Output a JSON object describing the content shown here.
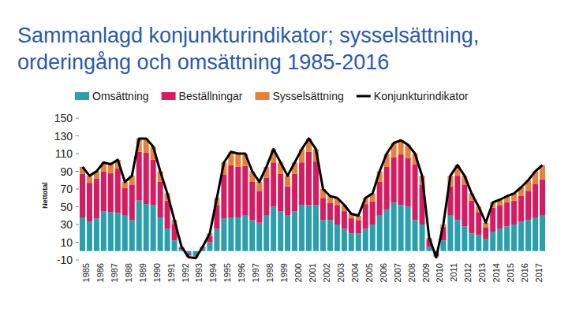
{
  "chart_data": {
    "type": "bar",
    "stacked": true,
    "grid": false,
    "title": "Sammanlagd konjunkturindikator; sysselsättning, orderingång och omsättning 1985-2016",
    "y_label": "Nettotal",
    "legend": "top",
    "ylim": [
      -10,
      150
    ],
    "yticks": [
      -10,
      10,
      30,
      50,
      70,
      90,
      110,
      130,
      150
    ],
    "categories": [
      "1985",
      null,
      "1986",
      null,
      "1987",
      null,
      "1988",
      null,
      "1989",
      null,
      "1990",
      null,
      "1991",
      null,
      "1992",
      null,
      "1993",
      null,
      "1994",
      null,
      "1995",
      null,
      "1996",
      null,
      "1997",
      null,
      "1998",
      null,
      "1999",
      null,
      "2000",
      null,
      "2001",
      null,
      "2002",
      null,
      "2003",
      null,
      "2004",
      null,
      "2005",
      null,
      "2006",
      null,
      "2007",
      null,
      "2008",
      null,
      "2009",
      null,
      "2010",
      null,
      "2011",
      null,
      "2012",
      null,
      "2013",
      null,
      "2014",
      null,
      "2015",
      null,
      "2016",
      null,
      "2017",
      null
    ],
    "series": [
      {
        "name": "Omsättning",
        "color": "#2a9fad",
        "type": "bar",
        "values": [
          38,
          33,
          37,
          45,
          44,
          43,
          40,
          35,
          57,
          53,
          52,
          38,
          25,
          12,
          2,
          -3,
          -5,
          3,
          10,
          25,
          37,
          38,
          38,
          40,
          35,
          32,
          40,
          50,
          45,
          40,
          45,
          52,
          52,
          52,
          35,
          35,
          30,
          25,
          20,
          20,
          25,
          30,
          40,
          47,
          55,
          52,
          50,
          35,
          30,
          5,
          -3,
          12,
          40,
          35,
          28,
          20,
          18,
          14,
          22,
          25,
          28,
          30,
          33,
          35,
          38,
          40
        ]
      },
      {
        "name": "Beställningar",
        "color": "#d81b60",
        "type": "bar",
        "values": [
          49,
          44,
          45,
          45,
          44,
          50,
          31,
          40,
          55,
          58,
          51,
          40,
          32,
          18,
          2,
          -2,
          -1,
          1,
          7,
          27,
          49,
          59,
          57,
          56,
          43,
          36,
          43,
          50,
          42,
          33,
          42,
          48,
          60,
          49,
          25,
          19,
          22,
          20,
          17,
          15,
          28,
          26,
          38,
          48,
          51,
          57,
          55,
          63,
          45,
          8,
          -3,
          15,
          33,
          50,
          47,
          37,
          26,
          13,
          27,
          27,
          27,
          27,
          29,
          33,
          38,
          41
        ]
      },
      {
        "name": "Sysselsättning",
        "color": "#e8803a",
        "type": "bar",
        "values": [
          8,
          8,
          8,
          10,
          10,
          10,
          7,
          10,
          15,
          16,
          15,
          12,
          8,
          5,
          1,
          -2,
          -2,
          1,
          3,
          8,
          14,
          15,
          15,
          14,
          12,
          10,
          12,
          15,
          13,
          12,
          13,
          15,
          15,
          14,
          10,
          8,
          8,
          7,
          5,
          5,
          7,
          9,
          12,
          15,
          16,
          16,
          15,
          12,
          10,
          2,
          -1,
          3,
          12,
          12,
          10,
          8,
          6,
          5,
          6,
          6,
          7,
          8,
          10,
          12,
          14,
          16
        ]
      },
      {
        "name": "Konjunkturindikator",
        "color": "#000000",
        "type": "line",
        "values": [
          95,
          85,
          90,
          100,
          98,
          103,
          78,
          85,
          127,
          127,
          118,
          90,
          65,
          35,
          5,
          -7,
          -8,
          5,
          20,
          60,
          100,
          112,
          110,
          110,
          90,
          78,
          95,
          115,
          100,
          85,
          100,
          115,
          127,
          115,
          70,
          62,
          60,
          52,
          42,
          40,
          60,
          65,
          90,
          110,
          122,
          125,
          120,
          110,
          85,
          15,
          -7,
          30,
          85,
          97,
          85,
          65,
          50,
          32,
          55,
          58,
          62,
          65,
          72,
          80,
          90,
          97
        ]
      }
    ]
  }
}
